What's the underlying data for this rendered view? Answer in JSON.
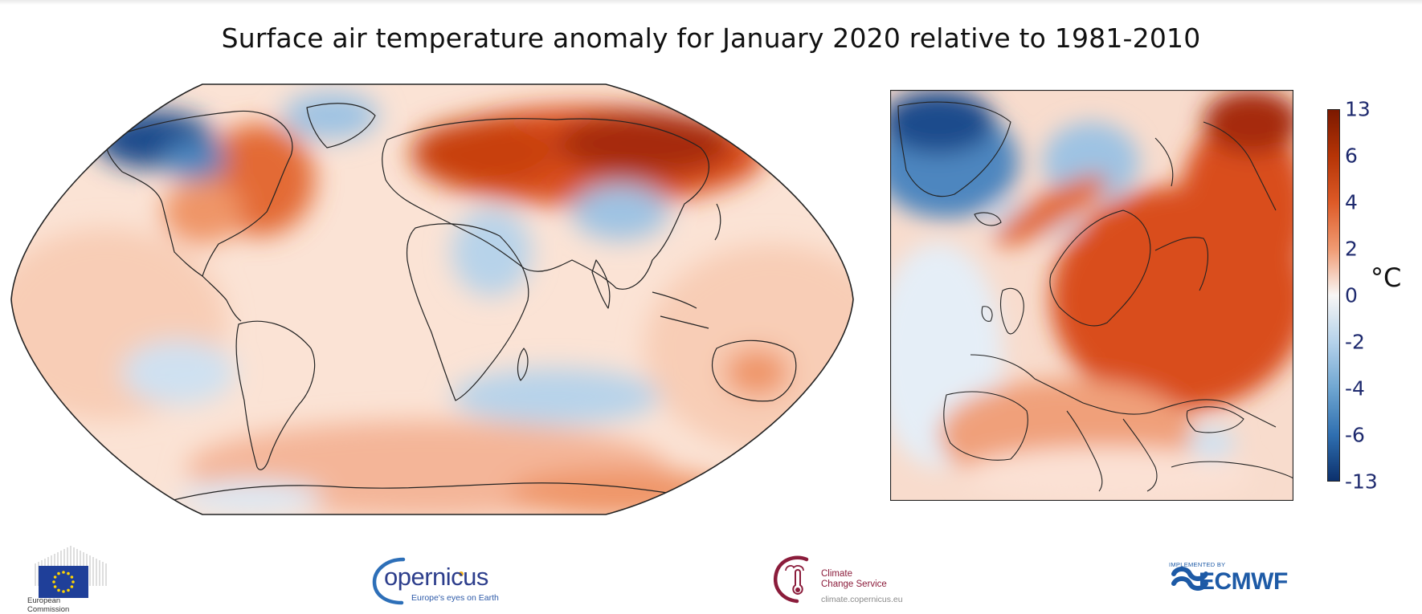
{
  "title": "Surface air temperature anomaly for January 2020 relative to 1981-2010",
  "maps": {
    "world": {
      "projection": "Robinson",
      "extent": "global"
    },
    "europe": {
      "projection": "regional",
      "extent": "Europe and North Atlantic"
    }
  },
  "colorbar": {
    "unit": "°C",
    "ticks": [
      "13",
      "6",
      "4",
      "2",
      "0",
      "-2",
      "-4",
      "-6",
      "-13"
    ],
    "tick_values": [
      13,
      6,
      4,
      2,
      0,
      -2,
      -4,
      -6,
      -13
    ],
    "colors": [
      "#7a1800",
      "#b53406",
      "#dd5a27",
      "#f09a72",
      "#f8f6f5",
      "#b5d2ea",
      "#6fa6d1",
      "#2f6fb0",
      "#0b2f6b"
    ]
  },
  "colors": {
    "neutral": "#fdf1ea",
    "warm_light": "#f8cdb6",
    "warm_medium": "#ef9568",
    "warm_strong": "#d94d1c",
    "warm_extreme": "#a62a08",
    "cool_light": "#dce9f5",
    "cool_medium": "#9ec3e3",
    "cool_strong": "#4d86bf",
    "cool_extreme": "#1b4c8c",
    "coast": "#222222"
  },
  "logos": {
    "european_commission": {
      "caption_line1": "European",
      "caption_line2": "Commission"
    },
    "copernicus": {
      "word": "opernicus",
      "tagline": "Europe's eyes on Earth"
    },
    "c3s": {
      "name_line1": "Climate",
      "name_line2": "Change Service",
      "url": "climate.copernicus.eu"
    },
    "ecmwf": {
      "implemented": "IMPLEMENTED BY",
      "word": "ECMWF"
    }
  }
}
